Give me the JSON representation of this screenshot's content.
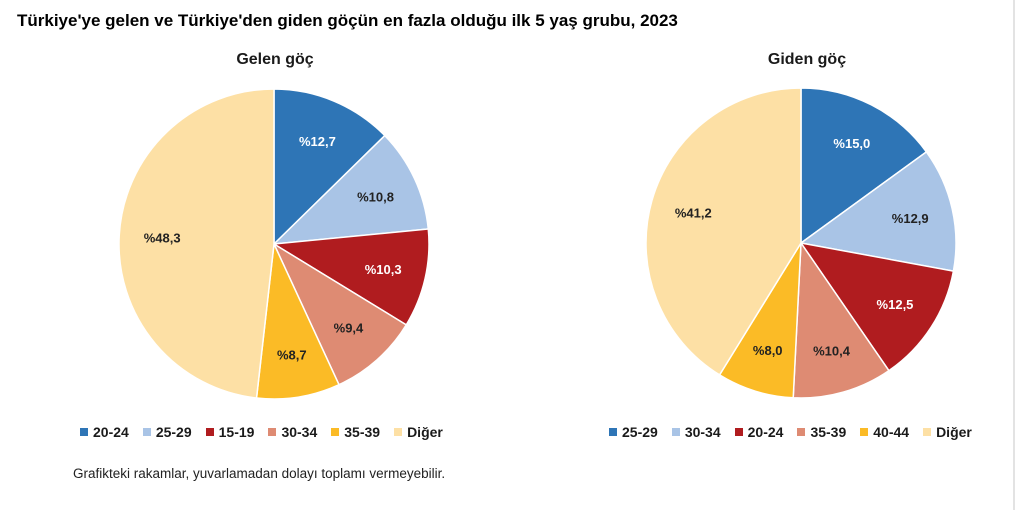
{
  "page_title": "Türkiye'ye gelen ve Türkiye'den giden göçün en fazla olduğu ilk 5 yaş grubu, 2023",
  "footnote": "Grafikteki rakamlar, yuvarlamadan dolayı toplamı vermeyebilir.",
  "chart_data": [
    {
      "type": "pie",
      "title": "Gelen göç",
      "categories": [
        "20-24",
        "25-29",
        "15-19",
        "30-34",
        "35-39",
        "Diğer"
      ],
      "values": [
        12.7,
        10.8,
        10.3,
        9.4,
        8.7,
        48.3
      ],
      "labels": [
        "%12,7",
        "%10,8",
        "%10,3",
        "%9,4",
        "%8,7",
        "%48,3"
      ],
      "colors": [
        "#2e75b6",
        "#a9c4e6",
        "#b01c1f",
        "#de8b73",
        "#fbbb26",
        "#fde0a5"
      ],
      "label_colors": [
        "#ffffff",
        "#222222",
        "#ffffff",
        "#222222",
        "#222222",
        "#222222"
      ],
      "legend_position": "bottom"
    },
    {
      "type": "pie",
      "title": "Giden göç",
      "categories": [
        "25-29",
        "30-34",
        "20-24",
        "35-39",
        "40-44",
        "Diğer"
      ],
      "values": [
        15.0,
        12.9,
        12.5,
        10.4,
        8.0,
        41.2
      ],
      "labels": [
        "%15,0",
        "%12,9",
        "%12,5",
        "%10,4",
        "%8,0",
        "%41,2"
      ],
      "colors": [
        "#2e75b6",
        "#a9c4e6",
        "#b01c1f",
        "#de8b73",
        "#fbbb26",
        "#fde0a5"
      ],
      "label_colors": [
        "#ffffff",
        "#222222",
        "#ffffff",
        "#222222",
        "#222222",
        "#222222"
      ],
      "legend_position": "bottom"
    }
  ]
}
